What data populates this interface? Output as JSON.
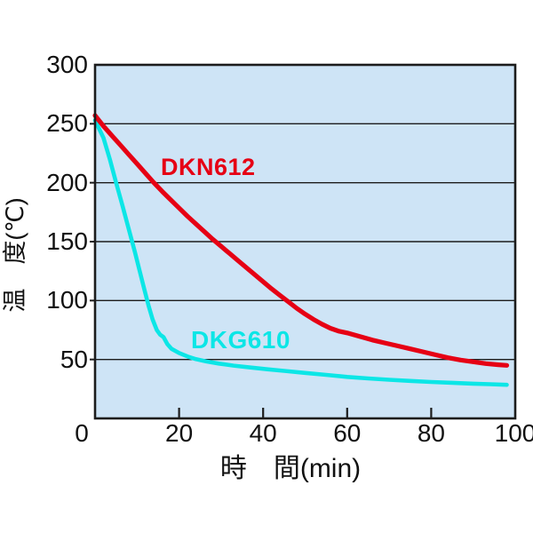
{
  "chart_data": {
    "type": "line",
    "title": "",
    "xlabel": "時　間(min)",
    "ylabel": "温　度(℃)",
    "x_unit": "min",
    "y_unit": "℃",
    "xlim": [
      0,
      100
    ],
    "ylim": [
      0,
      300
    ],
    "x_ticks": [
      0,
      20,
      40,
      60,
      80,
      100
    ],
    "y_ticks": [
      50,
      100,
      150,
      200,
      250,
      300
    ],
    "grid_y_values": [
      50,
      100,
      150,
      200,
      250
    ],
    "grid": "horizontal-only",
    "legend_position": "inline-labels",
    "colors": {
      "plot_background": "#cee4f6",
      "axis": "#1c1c1c",
      "text": "#111111"
    },
    "series": [
      {
        "name": "DKN612",
        "color": "#e60014",
        "points": [
          [
            0,
            257
          ],
          [
            2,
            248
          ],
          [
            4,
            240
          ],
          [
            6,
            232
          ],
          [
            8,
            224
          ],
          [
            10,
            216
          ],
          [
            12,
            208
          ],
          [
            14,
            200
          ],
          [
            16,
            192.5
          ],
          [
            18,
            185.5
          ],
          [
            20,
            178.5
          ],
          [
            22,
            171.5
          ],
          [
            24,
            165
          ],
          [
            26,
            158.5
          ],
          [
            28,
            152
          ],
          [
            30,
            146
          ],
          [
            32,
            140
          ],
          [
            34,
            134
          ],
          [
            36,
            128
          ],
          [
            38,
            122
          ],
          [
            40,
            116
          ],
          [
            42,
            110
          ],
          [
            44,
            104.5
          ],
          [
            46,
            99
          ],
          [
            48,
            93.5
          ],
          [
            50,
            88.5
          ],
          [
            52,
            84
          ],
          [
            54,
            80
          ],
          [
            56,
            76.5
          ],
          [
            58,
            74
          ],
          [
            60,
            72.5
          ],
          [
            63,
            69.5
          ],
          [
            66,
            66.5
          ],
          [
            69,
            64
          ],
          [
            72,
            61.5
          ],
          [
            75,
            59
          ],
          [
            78,
            56.5
          ],
          [
            81,
            54
          ],
          [
            84,
            51.5
          ],
          [
            87,
            49.5
          ],
          [
            90,
            48
          ],
          [
            93,
            46.5
          ],
          [
            96,
            45.5
          ],
          [
            98,
            45
          ]
        ]
      },
      {
        "name": "DKG610",
        "color": "#0ce6e6",
        "points": [
          [
            0,
            253
          ],
          [
            2,
            238
          ],
          [
            3.5,
            220
          ],
          [
            5,
            200
          ],
          [
            6.5,
            181
          ],
          [
            8,
            161
          ],
          [
            9.5,
            141
          ],
          [
            10.7,
            124
          ],
          [
            11.7,
            110
          ],
          [
            12.7,
            96
          ],
          [
            13.7,
            84
          ],
          [
            14.7,
            75
          ],
          [
            15.5,
            71
          ],
          [
            16.3,
            69
          ],
          [
            17.2,
            63
          ],
          [
            18.2,
            59
          ],
          [
            20,
            55.5
          ],
          [
            22,
            52.5
          ],
          [
            24,
            50.3
          ],
          [
            26.5,
            48.3
          ],
          [
            29.5,
            46.5
          ],
          [
            33,
            44.8
          ],
          [
            37,
            43.2
          ],
          [
            41,
            41.7
          ],
          [
            45,
            40.3
          ],
          [
            50,
            38.6
          ],
          [
            55,
            36.9
          ],
          [
            60,
            35.2
          ],
          [
            65,
            33.9
          ],
          [
            70,
            32.8
          ],
          [
            75,
            31.8
          ],
          [
            80,
            30.9
          ],
          [
            85,
            30.2
          ],
          [
            90,
            29.5
          ],
          [
            94,
            29
          ],
          [
            98,
            28.5
          ]
        ]
      }
    ]
  }
}
